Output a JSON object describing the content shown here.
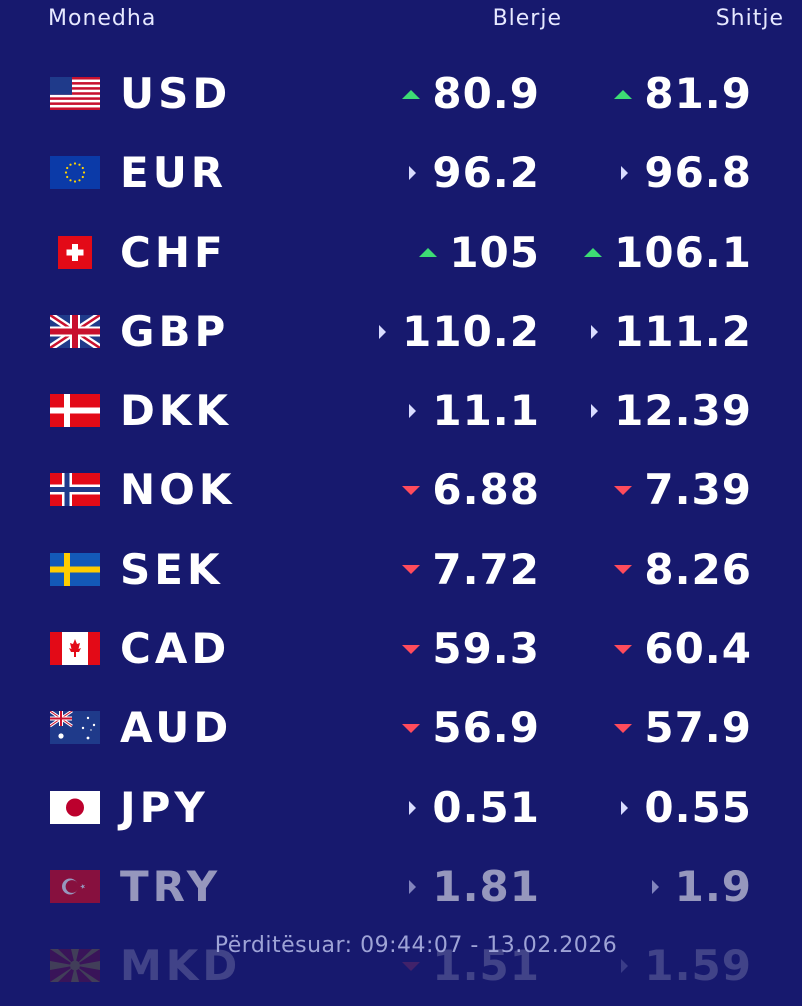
{
  "header": {
    "currency_label": "Monedha",
    "buy_label": "Blerje",
    "sell_label": "Shitje"
  },
  "colors": {
    "background": "#17196e",
    "up": "#3ddc74",
    "down": "#ff4b5c",
    "flat": "#d9dcff"
  },
  "rates": [
    {
      "code": "USD",
      "flag": "us-flag-icon",
      "buy": "80.9",
      "buy_trend": "up",
      "sell": "81.9",
      "sell_trend": "up"
    },
    {
      "code": "EUR",
      "flag": "eu-flag-icon",
      "buy": "96.2",
      "buy_trend": "flat",
      "sell": "96.8",
      "sell_trend": "flat"
    },
    {
      "code": "CHF",
      "flag": "ch-flag-icon",
      "buy": "105",
      "buy_trend": "up",
      "sell": "106.1",
      "sell_trend": "up"
    },
    {
      "code": "GBP",
      "flag": "gb-flag-icon",
      "buy": "110.2",
      "buy_trend": "flat",
      "sell": "111.2",
      "sell_trend": "flat"
    },
    {
      "code": "DKK",
      "flag": "dk-flag-icon",
      "buy": "11.1",
      "buy_trend": "flat",
      "sell": "12.39",
      "sell_trend": "flat"
    },
    {
      "code": "NOK",
      "flag": "no-flag-icon",
      "buy": "6.88",
      "buy_trend": "down",
      "sell": "7.39",
      "sell_trend": "down"
    },
    {
      "code": "SEK",
      "flag": "se-flag-icon",
      "buy": "7.72",
      "buy_trend": "down",
      "sell": "8.26",
      "sell_trend": "down"
    },
    {
      "code": "CAD",
      "flag": "ca-flag-icon",
      "buy": "59.3",
      "buy_trend": "down",
      "sell": "60.4",
      "sell_trend": "down"
    },
    {
      "code": "AUD",
      "flag": "au-flag-icon",
      "buy": "56.9",
      "buy_trend": "down",
      "sell": "57.9",
      "sell_trend": "down"
    },
    {
      "code": "JPY",
      "flag": "jp-flag-icon",
      "buy": "0.51",
      "buy_trend": "flat",
      "sell": "0.55",
      "sell_trend": "flat"
    },
    {
      "code": "TRY",
      "flag": "tr-flag-icon",
      "buy": "1.81",
      "buy_trend": "flat",
      "sell": "1.9",
      "sell_trend": "flat"
    },
    {
      "code": "MKD",
      "flag": "mk-flag-icon",
      "buy": "1.51",
      "buy_trend": "down",
      "sell": "1.59",
      "sell_trend": "flat"
    }
  ],
  "updated_text": "Përditësuar: 09:44:07 - 13.02.2026"
}
